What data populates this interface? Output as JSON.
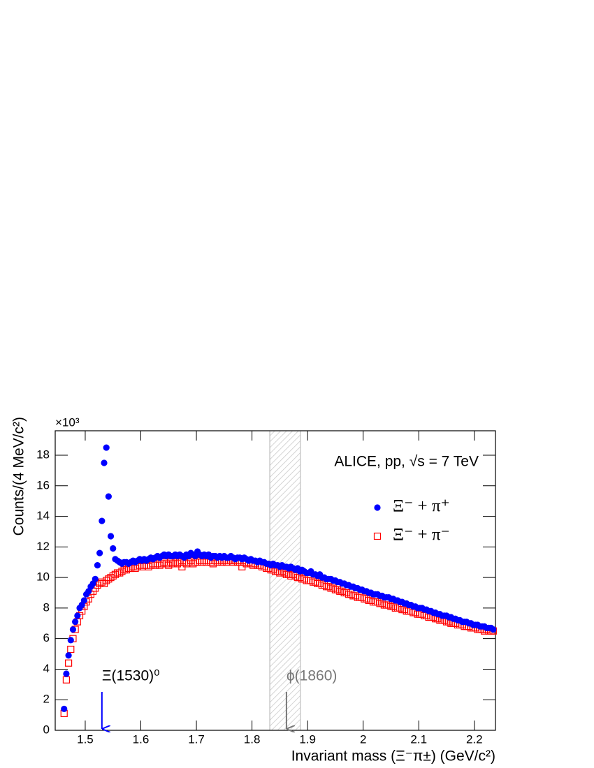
{
  "chart_data": {
    "type": "scatter",
    "x_label": "Invariant mass (Ξ⁻π±) (GeV/c²)",
    "y_label": "Counts/(4 MeV/c²)",
    "y_multiplier": "×10³",
    "label": "ALICE, pp,  √s = 7 TeV",
    "xlim": [
      1.446,
      2.238
    ],
    "ylim": [
      0,
      19.6
    ],
    "xticks": [
      1.5,
      1.6,
      1.7,
      1.8,
      1.9,
      2,
      2.1,
      2.2
    ],
    "yticks": [
      0,
      2,
      4,
      6,
      8,
      10,
      12,
      14,
      16,
      18
    ],
    "legend": "top-right",
    "band": {
      "from": 1.832,
      "to": 1.887,
      "color": "#b0b0b0"
    },
    "annotations": [
      {
        "text": "Ξ(1530)⁰",
        "x": 1.53,
        "color": "#0000ff"
      },
      {
        "text": "ϕ(1860)",
        "x": 1.862,
        "color": "#777777"
      }
    ],
    "x": [
      1.462,
      1.466,
      1.47,
      1.474,
      1.478,
      1.482,
      1.486,
      1.49,
      1.494,
      1.498,
      1.502,
      1.506,
      1.51,
      1.514,
      1.518,
      1.522,
      1.526,
      1.53,
      1.534,
      1.538,
      1.542,
      1.546,
      1.55,
      1.554,
      1.558,
      1.562,
      1.566,
      1.57,
      1.574,
      1.578,
      1.582,
      1.586,
      1.59,
      1.594,
      1.598,
      1.602,
      1.606,
      1.61,
      1.614,
      1.618,
      1.622,
      1.626,
      1.63,
      1.634,
      1.638,
      1.642,
      1.646,
      1.65,
      1.654,
      1.658,
      1.662,
      1.666,
      1.67,
      1.674,
      1.678,
      1.682,
      1.686,
      1.69,
      1.694,
      1.698,
      1.702,
      1.706,
      1.71,
      1.714,
      1.718,
      1.722,
      1.726,
      1.73,
      1.734,
      1.738,
      1.742,
      1.746,
      1.75,
      1.754,
      1.758,
      1.762,
      1.766,
      1.77,
      1.774,
      1.778,
      1.782,
      1.786,
      1.79,
      1.794,
      1.798,
      1.802,
      1.806,
      1.81,
      1.814,
      1.818,
      1.822,
      1.826,
      1.83,
      1.834,
      1.838,
      1.842,
      1.846,
      1.85,
      1.854,
      1.858,
      1.862,
      1.866,
      1.87,
      1.874,
      1.878,
      1.882,
      1.886,
      1.89,
      1.894,
      1.898,
      1.902,
      1.906,
      1.91,
      1.914,
      1.918,
      1.922,
      1.926,
      1.93,
      1.934,
      1.938,
      1.942,
      1.946,
      1.95,
      1.954,
      1.958,
      1.962,
      1.966,
      1.97,
      1.974,
      1.978,
      1.982,
      1.986,
      1.99,
      1.994,
      1.998,
      2.002,
      2.006,
      2.01,
      2.014,
      2.018,
      2.022,
      2.026,
      2.03,
      2.034,
      2.038,
      2.042,
      2.046,
      2.05,
      2.054,
      2.058,
      2.062,
      2.066,
      2.07,
      2.074,
      2.078,
      2.082,
      2.086,
      2.09,
      2.094,
      2.098,
      2.102,
      2.106,
      2.11,
      2.114,
      2.118,
      2.122,
      2.126,
      2.13,
      2.134,
      2.138,
      2.142,
      2.146,
      2.15,
      2.154,
      2.158,
      2.162,
      2.166,
      2.17,
      2.174,
      2.178,
      2.182,
      2.186,
      2.19,
      2.194,
      2.198,
      2.202,
      2.206,
      2.21,
      2.214,
      2.218,
      2.222,
      2.226,
      2.23,
      2.234
    ],
    "series": [
      {
        "name": "Ξ⁻ + π⁺",
        "color": "#0000ff",
        "marker": "circle",
        "values": [
          1.4,
          3.7,
          4.9,
          5.9,
          6.6,
          7.1,
          7.5,
          8.0,
          8.2,
          8.5,
          8.9,
          9.1,
          9.4,
          9.6,
          9.9,
          10.8,
          11.6,
          13.7,
          17.5,
          18.5,
          15.3,
          12.7,
          11.9,
          11.2,
          11.1,
          11.0,
          10.9,
          11.0,
          11.0,
          10.9,
          11.0,
          11.1,
          11.0,
          11.1,
          11.2,
          11.1,
          11.2,
          11.1,
          11.2,
          11.3,
          11.2,
          11.3,
          11.4,
          11.3,
          11.4,
          11.5,
          11.4,
          11.5,
          11.4,
          11.4,
          11.5,
          11.4,
          11.5,
          11.4,
          11.3,
          11.5,
          11.4,
          11.6,
          11.5,
          11.4,
          11.7,
          11.5,
          11.4,
          11.5,
          11.4,
          11.5,
          11.3,
          11.4,
          11.4,
          11.3,
          11.4,
          11.3,
          11.4,
          11.3,
          11.3,
          11.4,
          11.3,
          11.2,
          11.3,
          11.3,
          11.2,
          11.3,
          11.2,
          11.1,
          11.2,
          11.1,
          11.1,
          11.0,
          11.1,
          11.0,
          11.0,
          10.9,
          10.9,
          10.8,
          10.9,
          10.8,
          10.8,
          10.7,
          10.8,
          10.7,
          10.7,
          10.6,
          10.7,
          10.6,
          10.5,
          10.6,
          10.4,
          10.5,
          10.4,
          10.3,
          10.3,
          10.4,
          10.2,
          10.2,
          10.1,
          10.2,
          10.0,
          10.0,
          9.9,
          9.9,
          9.9,
          9.8,
          9.8,
          9.7,
          9.7,
          9.6,
          9.6,
          9.5,
          9.5,
          9.4,
          9.4,
          9.3,
          9.3,
          9.2,
          9.2,
          9.1,
          9.1,
          9.0,
          9.0,
          8.9,
          8.9,
          8.9,
          8.8,
          8.8,
          8.7,
          8.7,
          8.7,
          8.6,
          8.6,
          8.5,
          8.5,
          8.4,
          8.4,
          8.3,
          8.3,
          8.2,
          8.2,
          8.1,
          8.1,
          8.0,
          8.0,
          8.0,
          7.9,
          7.9,
          7.8,
          7.8,
          7.7,
          7.7,
          7.6,
          7.6,
          7.5,
          7.5,
          7.5,
          7.4,
          7.4,
          7.3,
          7.3,
          7.2,
          7.2,
          7.1,
          7.1,
          7.1,
          7.0,
          7.0,
          6.9,
          6.9,
          6.9,
          6.8,
          6.8,
          6.8,
          6.7,
          6.7,
          6.7,
          6.6
        ]
      },
      {
        "name": "Ξ⁻ + π⁻",
        "color": "#ff0000",
        "marker": "open-square",
        "values": [
          1.1,
          3.3,
          4.4,
          5.3,
          6.0,
          6.6,
          7.1,
          7.5,
          7.8,
          8.1,
          8.4,
          8.6,
          8.9,
          9.1,
          9.3,
          9.5,
          9.6,
          9.7,
          9.6,
          9.8,
          9.9,
          10.0,
          10.1,
          10.2,
          10.3,
          10.3,
          10.4,
          10.5,
          10.5,
          10.6,
          10.6,
          10.7,
          10.6,
          10.7,
          10.8,
          10.7,
          10.8,
          10.8,
          10.7,
          10.8,
          10.9,
          10.8,
          10.9,
          10.8,
          10.9,
          11.0,
          10.9,
          10.8,
          11.0,
          10.9,
          11.0,
          10.9,
          11.0,
          10.7,
          11.0,
          10.9,
          11.0,
          11.1,
          10.9,
          11.0,
          11.0,
          11.1,
          11.0,
          11.1,
          11.0,
          11.1,
          11.0,
          10.9,
          11.1,
          11.0,
          11.1,
          11.0,
          11.1,
          11.0,
          11.1,
          11.1,
          11.0,
          11.1,
          11.0,
          11.0,
          10.7,
          11.0,
          10.9,
          11.0,
          10.9,
          10.8,
          10.9,
          10.8,
          10.8,
          10.7,
          10.7,
          10.6,
          10.6,
          10.5,
          10.5,
          10.4,
          10.4,
          10.3,
          10.4,
          10.3,
          10.2,
          10.2,
          10.1,
          10.2,
          10.1,
          10.0,
          10.0,
          9.9,
          9.9,
          9.8,
          9.8,
          9.8,
          9.7,
          9.7,
          9.6,
          9.6,
          9.5,
          9.5,
          9.4,
          9.4,
          9.3,
          9.3,
          9.2,
          9.2,
          9.1,
          9.1,
          9.0,
          9.0,
          8.9,
          8.9,
          8.8,
          8.8,
          8.7,
          8.7,
          8.7,
          8.6,
          8.6,
          8.5,
          8.5,
          8.4,
          8.4,
          8.4,
          8.3,
          8.3,
          8.2,
          8.2,
          8.2,
          8.1,
          8.1,
          8.0,
          8.0,
          8.0,
          7.9,
          7.9,
          7.8,
          7.8,
          7.8,
          7.7,
          7.7,
          7.6,
          7.6,
          7.6,
          7.5,
          7.5,
          7.4,
          7.4,
          7.4,
          7.3,
          7.3,
          7.2,
          7.2,
          7.2,
          7.1,
          7.1,
          7.0,
          7.0,
          7.0,
          6.9,
          6.9,
          6.9,
          6.8,
          6.8,
          6.8,
          6.7,
          6.7,
          6.7,
          6.6,
          6.6,
          6.6,
          6.5,
          6.6,
          6.5,
          6.5,
          6.5
        ]
      }
    ]
  }
}
